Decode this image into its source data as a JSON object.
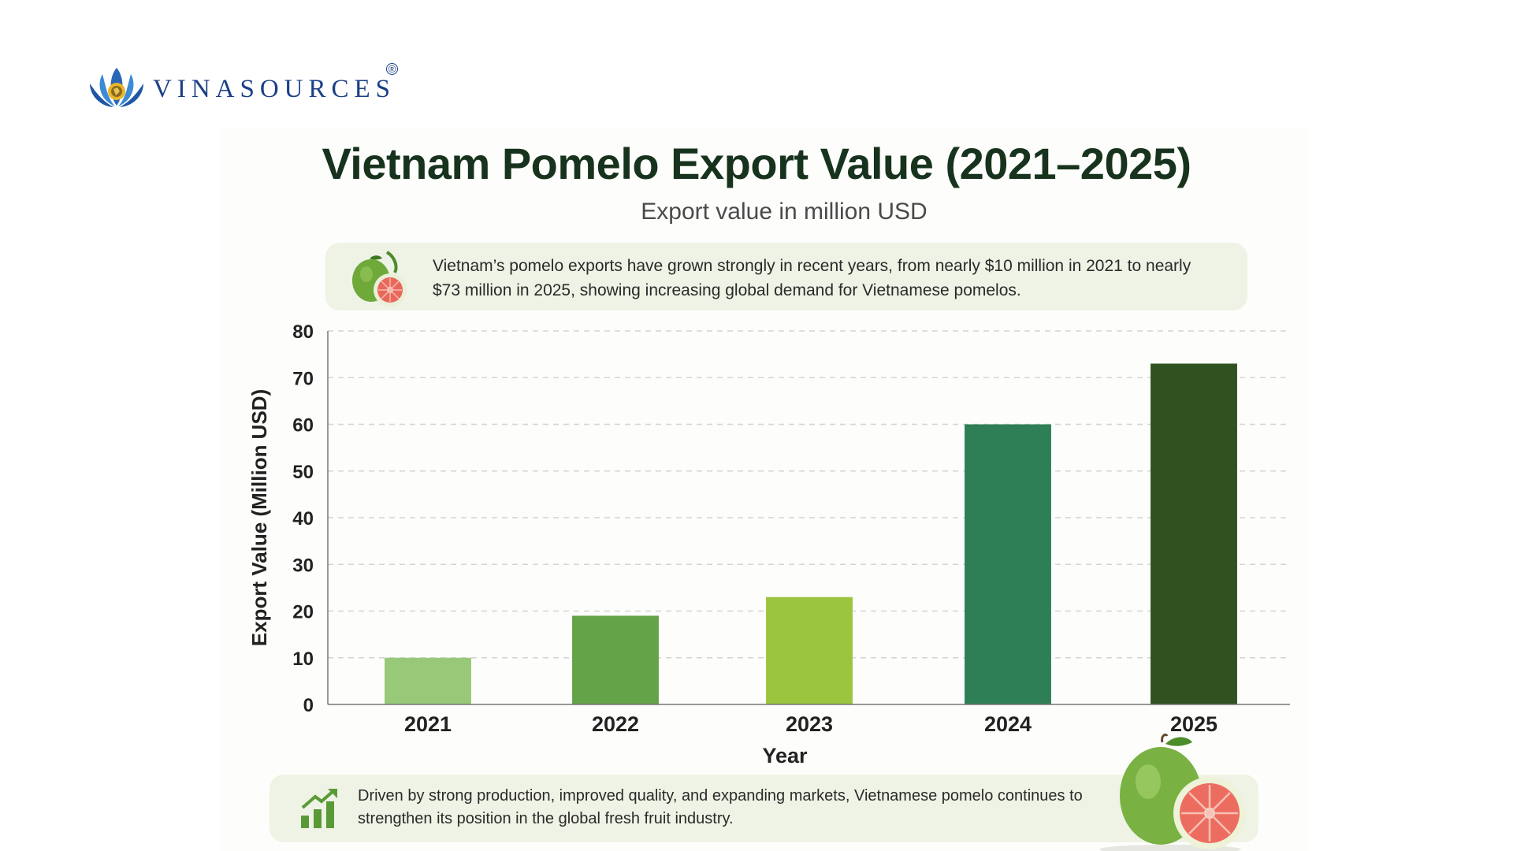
{
  "brand": {
    "name": "VINASOURCES",
    "registered": "®"
  },
  "note_top": "Vietnam’s pomelo exports have grown strongly in recent years, from nearly $10 million in 2021 to nearly $73 million in 2025, showing increasing global demand for Vietnamese pomelos.",
  "note_bottom": "Driven by strong production, improved quality, and expanding markets, Vietnamese pomelo continues to strengthen its position in the global fresh fruit industry.",
  "colors": {
    "title": "#17331d",
    "bar_2021": "#98c978",
    "bar_2022": "#64a347",
    "bar_2023": "#9bc53f",
    "bar_2024": "#2e7f55",
    "bar_2025": "#2f5220",
    "note_bg": "#eef3e5"
  },
  "icons": [
    "lotus-logo-icon",
    "pomelo-icon",
    "growth-chart-icon",
    "pomelo-halves-icon"
  ],
  "chart_data": {
    "type": "bar",
    "title": "Vietnam Pomelo Export Value (2021–2025)",
    "subtitle": "Export value in million USD",
    "xlabel": "Year",
    "ylabel": "Export Value (Million USD)",
    "categories": [
      "2021",
      "2022",
      "2023",
      "2024",
      "2025"
    ],
    "values": [
      10,
      19,
      23,
      60,
      73
    ],
    "ylim": [
      0,
      80
    ],
    "yticks": [
      "0",
      "10",
      "20",
      "30",
      "40",
      "50",
      "60",
      "70",
      "80"
    ],
    "grid": true,
    "bar_colors": [
      "#98c978",
      "#64a347",
      "#9bc53f",
      "#2e7f55",
      "#2f5220"
    ]
  }
}
